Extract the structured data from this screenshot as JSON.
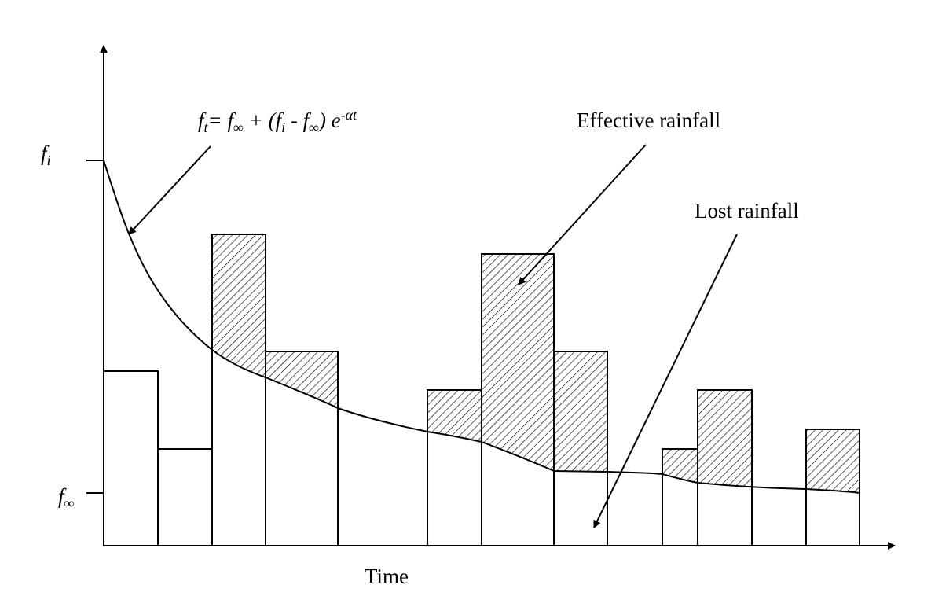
{
  "labels": {
    "fi": "f",
    "fi_sub": "i",
    "finf": "f",
    "finf_sub": "∞",
    "formula": {
      "p1": "f",
      "p1_sub": "t",
      "p2": "= f",
      "p2_sub": "∞",
      "p3": " + (f",
      "p3_sub": "i",
      "p4": " - f",
      "p4_sub": "∞",
      "p5": ") e",
      "p5_sup": "-αt"
    },
    "effective": "Effective rainfall",
    "lost": "Lost rainfall",
    "time": "Time"
  },
  "colors": {
    "stroke": "#000000",
    "background": "#ffffff"
  }
}
